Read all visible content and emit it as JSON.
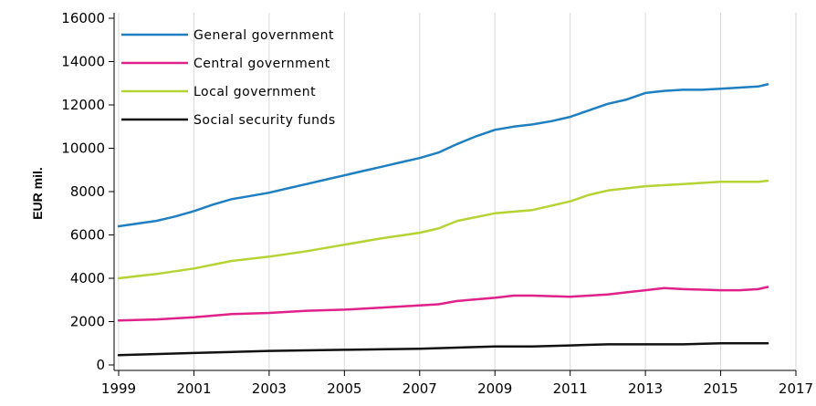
{
  "chart_data": {
    "type": "line",
    "title": "",
    "xlabel": "",
    "ylabel": "EUR mil.",
    "xlim": [
      1999,
      2017
    ],
    "ylim": [
      0,
      16000
    ],
    "x_ticks": [
      "1999",
      "2001",
      "2003",
      "2005",
      "2007",
      "2009",
      "2011",
      "2013",
      "2015",
      "2017"
    ],
    "y_ticks": [
      "0",
      "2000",
      "4000",
      "6000",
      "8000",
      "10000",
      "12000",
      "14000",
      "16000"
    ],
    "grid": "vertical",
    "legend_position": "top-left",
    "series": [
      {
        "name": "General government",
        "color": "#1f7fc0",
        "points": [
          [
            1999,
            6400
          ],
          [
            2000,
            6650
          ],
          [
            2000.5,
            6850
          ],
          [
            2001,
            7100
          ],
          [
            2001.5,
            7400
          ],
          [
            2002,
            7650
          ],
          [
            2002.5,
            7800
          ],
          [
            2003,
            7950
          ],
          [
            2003.5,
            8150
          ],
          [
            2004,
            8350
          ],
          [
            2004.5,
            8550
          ],
          [
            2005,
            8750
          ],
          [
            2005.5,
            8950
          ],
          [
            2006,
            9150
          ],
          [
            2006.5,
            9350
          ],
          [
            2007,
            9550
          ],
          [
            2007.5,
            9800
          ],
          [
            2008,
            10200
          ],
          [
            2008.5,
            10550
          ],
          [
            2009,
            10850
          ],
          [
            2009.5,
            11000
          ],
          [
            2010,
            11100
          ],
          [
            2010.5,
            11250
          ],
          [
            2011,
            11450
          ],
          [
            2011.5,
            11750
          ],
          [
            2012,
            12050
          ],
          [
            2012.5,
            12250
          ],
          [
            2013,
            12550
          ],
          [
            2013.5,
            12650
          ],
          [
            2014,
            12700
          ],
          [
            2014.5,
            12700
          ],
          [
            2015,
            12750
          ],
          [
            2015.5,
            12800
          ],
          [
            2016,
            12850
          ],
          [
            2016.25,
            12950
          ]
        ]
      },
      {
        "name": "Central government",
        "color": "#e0218a",
        "points": [
          [
            1999,
            2050
          ],
          [
            2000,
            2100
          ],
          [
            2001,
            2200
          ],
          [
            2002,
            2350
          ],
          [
            2003,
            2400
          ],
          [
            2004,
            2500
          ],
          [
            2005,
            2550
          ],
          [
            2006,
            2650
          ],
          [
            2007,
            2750
          ],
          [
            2007.5,
            2800
          ],
          [
            2008,
            2950
          ],
          [
            2009,
            3100
          ],
          [
            2009.5,
            3200
          ],
          [
            2010,
            3200
          ],
          [
            2011,
            3150
          ],
          [
            2012,
            3250
          ],
          [
            2012.5,
            3350
          ],
          [
            2013,
            3450
          ],
          [
            2013.5,
            3550
          ],
          [
            2014,
            3500
          ],
          [
            2015,
            3450
          ],
          [
            2015.5,
            3450
          ],
          [
            2016,
            3500
          ],
          [
            2016.25,
            3600
          ]
        ]
      },
      {
        "name": "Local government",
        "color": "#b5d334",
        "points": [
          [
            1999,
            4000
          ],
          [
            2000,
            4200
          ],
          [
            2001,
            4450
          ],
          [
            2002,
            4800
          ],
          [
            2003,
            5000
          ],
          [
            2004,
            5250
          ],
          [
            2005,
            5550
          ],
          [
            2006,
            5850
          ],
          [
            2007,
            6100
          ],
          [
            2007.5,
            6300
          ],
          [
            2008,
            6650
          ],
          [
            2009,
            7000
          ],
          [
            2010,
            7150
          ],
          [
            2011,
            7550
          ],
          [
            2011.5,
            7850
          ],
          [
            2012,
            8050
          ],
          [
            2013,
            8250
          ],
          [
            2014,
            8350
          ],
          [
            2015,
            8450
          ],
          [
            2016,
            8450
          ],
          [
            2016.25,
            8500
          ]
        ]
      },
      {
        "name": "Social security funds",
        "color": "#111111",
        "points": [
          [
            1999,
            450
          ],
          [
            2001,
            550
          ],
          [
            2003,
            650
          ],
          [
            2005,
            700
          ],
          [
            2007,
            750
          ],
          [
            2009,
            850
          ],
          [
            2010,
            850
          ],
          [
            2011,
            900
          ],
          [
            2012,
            950
          ],
          [
            2013,
            950
          ],
          [
            2014,
            950
          ],
          [
            2015,
            1000
          ],
          [
            2016,
            1000
          ],
          [
            2016.25,
            1000
          ]
        ]
      }
    ]
  }
}
